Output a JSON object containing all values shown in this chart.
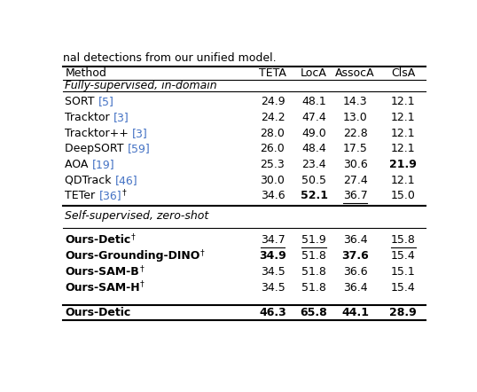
{
  "headers": [
    "Method",
    "TETA",
    "LocA",
    "AssocA",
    "ClsA"
  ],
  "section1_label": "Fully-supervised, in-domain",
  "section2_label": "Self-supervised, zero-shot",
  "rows_section1": [
    {
      "method_parts": [
        {
          "text": "SORT ",
          "bold": false,
          "color": "black"
        },
        {
          "text": "[5]",
          "bold": false,
          "color": "#4472C4"
        }
      ],
      "values": [
        "24.9",
        "48.1",
        "14.3",
        "12.1"
      ],
      "bold": [
        false,
        false,
        false,
        false
      ],
      "underline": [
        false,
        false,
        false,
        false
      ]
    },
    {
      "method_parts": [
        {
          "text": "Tracktor ",
          "bold": false,
          "color": "black"
        },
        {
          "text": "[3]",
          "bold": false,
          "color": "#4472C4"
        }
      ],
      "values": [
        "24.2",
        "47.4",
        "13.0",
        "12.1"
      ],
      "bold": [
        false,
        false,
        false,
        false
      ],
      "underline": [
        false,
        false,
        false,
        false
      ]
    },
    {
      "method_parts": [
        {
          "text": "Tracktor++ ",
          "bold": false,
          "color": "black"
        },
        {
          "text": "[3]",
          "bold": false,
          "color": "#4472C4"
        }
      ],
      "values": [
        "28.0",
        "49.0",
        "22.8",
        "12.1"
      ],
      "bold": [
        false,
        false,
        false,
        false
      ],
      "underline": [
        false,
        false,
        false,
        false
      ]
    },
    {
      "method_parts": [
        {
          "text": "DeepSORT ",
          "bold": false,
          "color": "black"
        },
        {
          "text": "[59]",
          "bold": false,
          "color": "#4472C4"
        }
      ],
      "values": [
        "26.0",
        "48.4",
        "17.5",
        "12.1"
      ],
      "bold": [
        false,
        false,
        false,
        false
      ],
      "underline": [
        false,
        false,
        false,
        false
      ]
    },
    {
      "method_parts": [
        {
          "text": "AOA ",
          "bold": false,
          "color": "black"
        },
        {
          "text": "[19]",
          "bold": false,
          "color": "#4472C4"
        }
      ],
      "values": [
        "25.3",
        "23.4",
        "30.6",
        "21.9"
      ],
      "bold": [
        false,
        false,
        false,
        true
      ],
      "underline": [
        false,
        false,
        false,
        false
      ]
    },
    {
      "method_parts": [
        {
          "text": "QDTrack ",
          "bold": false,
          "color": "black"
        },
        {
          "text": "[46]",
          "bold": false,
          "color": "#4472C4"
        }
      ],
      "values": [
        "30.0",
        "50.5",
        "27.4",
        "12.1"
      ],
      "bold": [
        false,
        false,
        false,
        false
      ],
      "underline": [
        false,
        false,
        false,
        false
      ]
    },
    {
      "method_parts": [
        {
          "text": "TETer ",
          "bold": false,
          "color": "black"
        },
        {
          "text": "[36]",
          "bold": false,
          "color": "#4472C4"
        },
        {
          "text": "†",
          "bold": false,
          "color": "black",
          "super": true
        }
      ],
      "values": [
        "34.6",
        "52.1",
        "36.7",
        "15.0"
      ],
      "bold": [
        false,
        true,
        false,
        false
      ],
      "underline": [
        false,
        false,
        true,
        false
      ]
    }
  ],
  "rows_section2": [
    {
      "method_parts": [
        {
          "text": "Ours-Detic",
          "bold": true,
          "color": "black"
        },
        {
          "text": "†",
          "bold": false,
          "color": "black",
          "super": true
        }
      ],
      "values": [
        "34.7",
        "51.9",
        "36.4",
        "15.8"
      ],
      "bold": [
        false,
        false,
        false,
        false
      ],
      "underline": [
        true,
        true,
        false,
        true
      ]
    },
    {
      "method_parts": [
        {
          "text": "Ours-Grounding-DINO",
          "bold": true,
          "color": "black"
        },
        {
          "text": "†",
          "bold": false,
          "color": "black",
          "super": true
        }
      ],
      "values": [
        "34.9",
        "51.8",
        "37.6",
        "15.4"
      ],
      "bold": [
        true,
        false,
        true,
        false
      ],
      "underline": [
        false,
        false,
        false,
        false
      ]
    },
    {
      "method_parts": [
        {
          "text": "Ours-SAM-B",
          "bold": true,
          "color": "black"
        },
        {
          "text": "†",
          "bold": false,
          "color": "black",
          "super": true
        }
      ],
      "values": [
        "34.5",
        "51.8",
        "36.6",
        "15.1"
      ],
      "bold": [
        false,
        false,
        false,
        false
      ],
      "underline": [
        false,
        false,
        false,
        false
      ]
    },
    {
      "method_parts": [
        {
          "text": "Ours-SAM-H",
          "bold": true,
          "color": "black"
        },
        {
          "text": "†",
          "bold": false,
          "color": "black",
          "super": true
        }
      ],
      "values": [
        "34.5",
        "51.8",
        "36.4",
        "15.4"
      ],
      "bold": [
        false,
        false,
        false,
        false
      ],
      "underline": [
        false,
        false,
        false,
        false
      ]
    }
  ],
  "row_final": {
    "method_parts": [
      {
        "text": "Ours-Detic",
        "bold": true,
        "color": "black"
      }
    ],
    "values": [
      "46.3",
      "65.8",
      "44.1",
      "28.9"
    ],
    "bold": [
      true,
      true,
      true,
      true
    ],
    "underline": [
      false,
      false,
      false,
      false
    ]
  },
  "blue_color": "#4472C4",
  "background_color": "white",
  "caption": "nal detections from our unified model."
}
